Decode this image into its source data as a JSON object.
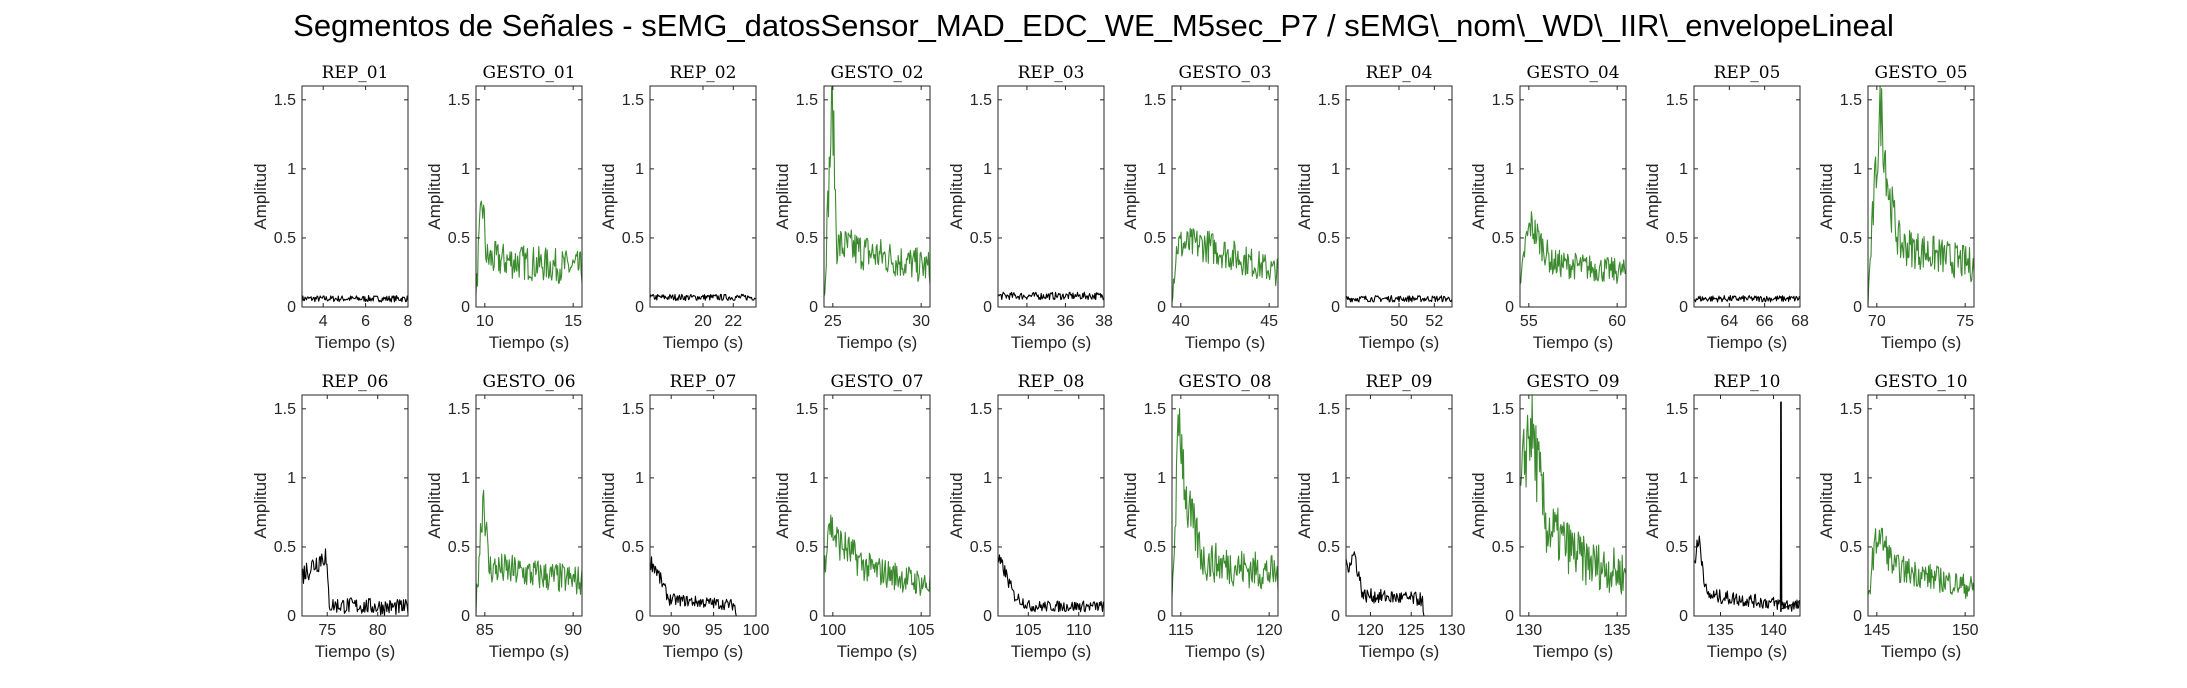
{
  "title": "Segmentos de Señales - sEMG_datosSensor_MAD_EDC_WE_M5sec_P7 / sEMG\\_nom\\_WD\\_IIR\\_envelopeLineal",
  "colors": {
    "rep": "#000000",
    "gesto": "#3b8a2e",
    "axis": "#262626"
  },
  "chart_data": [
    {
      "type": "line",
      "title": "REP_01",
      "color": "rep",
      "xlabel": "Tiempo (s)",
      "ylabel": "Amplitud",
      "xlim": [
        3,
        8
      ],
      "ylim": [
        0,
        1.6
      ],
      "xticks": [
        4,
        6,
        8
      ],
      "yticks": [
        0,
        0.5,
        1,
        1.5
      ],
      "ytick_labels": [
        "0",
        "0.5",
        "1",
        "1.5"
      ],
      "shape": [
        [
          0,
          0.06
        ],
        [
          1,
          0.06
        ]
      ],
      "amp": 0.035
    },
    {
      "type": "line",
      "title": "GESTO_01",
      "color": "gesto",
      "xlabel": "Tiempo (s)",
      "ylabel": "Amplitud",
      "xlim": [
        9.5,
        15.5
      ],
      "ylim": [
        0,
        1.6
      ],
      "xticks": [
        10,
        15
      ],
      "yticks": [
        0,
        0.5,
        1,
        1.5
      ],
      "ytick_labels": [
        "0",
        "0.5",
        "1",
        "1.5"
      ],
      "shape": [
        [
          0,
          0.05
        ],
        [
          0.02,
          0.35
        ],
        [
          0.06,
          0.78
        ],
        [
          0.1,
          0.35
        ],
        [
          1,
          0.28
        ]
      ],
      "amp": 0.14
    },
    {
      "type": "line",
      "title": "REP_02",
      "color": "rep",
      "xlabel": "Tiempo (s)",
      "ylabel": "Amplitud",
      "xlim": [
        16.5,
        23.5
      ],
      "ylim": [
        0,
        1.6
      ],
      "xticks": [
        20,
        22
      ],
      "yticks": [
        0,
        0.5,
        1,
        1.5
      ],
      "ytick_labels": [
        "0",
        "0.5",
        "1",
        "1.5"
      ],
      "shape": [
        [
          0,
          0.07
        ],
        [
          1,
          0.07
        ]
      ],
      "amp": 0.035
    },
    {
      "type": "line",
      "title": "GESTO_02",
      "color": "gesto",
      "xlabel": "Tiempo (s)",
      "ylabel": "Amplitud",
      "xlim": [
        24.5,
        30.5
      ],
      "ylim": [
        0,
        1.6
      ],
      "xticks": [
        25,
        30
      ],
      "yticks": [
        0,
        0.5,
        1,
        1.5
      ],
      "ytick_labels": [
        "0",
        "0.5",
        "1",
        "1.5"
      ],
      "shape": [
        [
          0,
          0.05
        ],
        [
          0.03,
          0.6
        ],
        [
          0.08,
          1.52
        ],
        [
          0.12,
          0.45
        ],
        [
          1,
          0.28
        ]
      ],
      "amp": 0.14
    },
    {
      "type": "line",
      "title": "REP_03",
      "color": "rep",
      "xlabel": "Tiempo (s)",
      "ylabel": "Amplitud",
      "xlim": [
        32.5,
        38
      ],
      "ylim": [
        0,
        1.6
      ],
      "xticks": [
        34,
        36,
        38
      ],
      "yticks": [
        0,
        0.5,
        1,
        1.5
      ],
      "ytick_labels": [
        "0",
        "0.5",
        "1",
        "1.5"
      ],
      "shape": [
        [
          0,
          0.08
        ],
        [
          1,
          0.08
        ]
      ],
      "amp": 0.04
    },
    {
      "type": "line",
      "title": "GESTO_03",
      "color": "gesto",
      "xlabel": "Tiempo (s)",
      "ylabel": "Amplitud",
      "xlim": [
        39.5,
        45.5
      ],
      "ylim": [
        0,
        1.6
      ],
      "xticks": [
        40,
        45
      ],
      "yticks": [
        0,
        0.5,
        1,
        1.5
      ],
      "ytick_labels": [
        "0",
        "0.5",
        "1",
        "1.5"
      ],
      "shape": [
        [
          0,
          0.1
        ],
        [
          0.05,
          0.45
        ],
        [
          0.3,
          0.45
        ],
        [
          1,
          0.25
        ]
      ],
      "amp": 0.12
    },
    {
      "type": "line",
      "title": "REP_04",
      "color": "rep",
      "xlabel": "Tiempo (s)",
      "ylabel": "Amplitud",
      "xlim": [
        47,
        53
      ],
      "ylim": [
        0,
        1.6
      ],
      "xticks": [
        50,
        52
      ],
      "yticks": [
        0,
        0.5,
        1,
        1.5
      ],
      "ytick_labels": [
        "0",
        "0.5",
        "1",
        "1.5"
      ],
      "shape": [
        [
          0,
          0.06
        ],
        [
          1,
          0.06
        ]
      ],
      "amp": 0.035
    },
    {
      "type": "line",
      "title": "GESTO_04",
      "color": "gesto",
      "xlabel": "Tiempo (s)",
      "ylabel": "Amplitud",
      "xlim": [
        54.5,
        60.5
      ],
      "ylim": [
        0,
        1.6
      ],
      "xticks": [
        55,
        60
      ],
      "yticks": [
        0,
        0.5,
        1,
        1.5
      ],
      "ytick_labels": [
        "0",
        "0.5",
        "1",
        "1.5"
      ],
      "shape": [
        [
          0,
          0.1
        ],
        [
          0.05,
          0.45
        ],
        [
          0.1,
          0.6
        ],
        [
          0.3,
          0.32
        ],
        [
          1,
          0.25
        ]
      ],
      "amp": 0.11
    },
    {
      "type": "line",
      "title": "REP_05",
      "color": "rep",
      "xlabel": "Tiempo (s)",
      "ylabel": "Amplitud",
      "xlim": [
        62,
        68
      ],
      "ylim": [
        0,
        1.6
      ],
      "xticks": [
        64,
        66,
        68
      ],
      "yticks": [
        0,
        0.5,
        1,
        1.5
      ],
      "ytick_labels": [
        "0",
        "0.5",
        "1",
        "1.5"
      ],
      "shape": [
        [
          0,
          0.06
        ],
        [
          1,
          0.06
        ]
      ],
      "amp": 0.035
    },
    {
      "type": "line",
      "title": "GESTO_05",
      "color": "gesto",
      "xlabel": "Tiempo (s)",
      "ylabel": "Amplitud",
      "xlim": [
        69.5,
        75.5
      ],
      "ylim": [
        0,
        1.6
      ],
      "xticks": [
        70,
        75
      ],
      "yticks": [
        0,
        0.5,
        1,
        1.5
      ],
      "ytick_labels": [
        "0",
        "0.5",
        "1",
        "1.5"
      ],
      "shape": [
        [
          0,
          0.05
        ],
        [
          0.05,
          0.7
        ],
        [
          0.12,
          1.45
        ],
        [
          0.2,
          0.8
        ],
        [
          0.3,
          0.45
        ],
        [
          1,
          0.3
        ]
      ],
      "amp": 0.14
    },
    {
      "type": "line",
      "title": "REP_06",
      "color": "rep",
      "xlabel": "Tiempo (s)",
      "ylabel": "Amplitud",
      "xlim": [
        72.5,
        83
      ],
      "ylim": [
        0,
        1.6
      ],
      "xticks": [
        75,
        80
      ],
      "yticks": [
        0,
        0.5,
        1,
        1.5
      ],
      "ytick_labels": [
        "0",
        "0.5",
        "1",
        "1.5"
      ],
      "shape": [
        [
          0,
          0.3
        ],
        [
          0.15,
          0.4
        ],
        [
          0.22,
          0.45
        ],
        [
          0.26,
          0.08
        ],
        [
          1,
          0.06
        ]
      ],
      "amp": 0.09
    },
    {
      "type": "line",
      "title": "GESTO_06",
      "color": "gesto",
      "xlabel": "Tiempo (s)",
      "ylabel": "Amplitud",
      "xlim": [
        84.5,
        90.5
      ],
      "ylim": [
        0,
        1.6
      ],
      "xticks": [
        85,
        90
      ],
      "yticks": [
        0,
        0.5,
        1,
        1.5
      ],
      "ytick_labels": [
        "0",
        "0.5",
        "1",
        "1.5"
      ],
      "shape": [
        [
          0,
          0.05
        ],
        [
          0.03,
          0.45
        ],
        [
          0.07,
          0.92
        ],
        [
          0.12,
          0.35
        ],
        [
          1,
          0.25
        ]
      ],
      "amp": 0.13
    },
    {
      "type": "line",
      "title": "REP_07",
      "color": "rep",
      "xlabel": "Tiempo (s)",
      "ylabel": "Amplitud",
      "xlim": [
        87.5,
        100
      ],
      "ylim": [
        0,
        1.6
      ],
      "xticks": [
        90,
        95,
        100
      ],
      "yticks": [
        0,
        0.5,
        1,
        1.5
      ],
      "ytick_labels": [
        "0",
        "0.5",
        "1",
        "1.5"
      ],
      "shape": [
        [
          0,
          0.4
        ],
        [
          0.05,
          0.35
        ],
        [
          0.18,
          0.12
        ],
        [
          0.8,
          0.08
        ],
        [
          0.81,
          0
        ],
        [
          1,
          0
        ]
      ],
      "amp": 0.06
    },
    {
      "type": "line",
      "title": "GESTO_07",
      "color": "gesto",
      "xlabel": "Tiempo (s)",
      "ylabel": "Amplitud",
      "xlim": [
        99.5,
        105.5
      ],
      "ylim": [
        0,
        1.6
      ],
      "xticks": [
        100,
        105
      ],
      "yticks": [
        0,
        0.5,
        1,
        1.5
      ],
      "ytick_labels": [
        "0",
        "0.5",
        "1",
        "1.5"
      ],
      "shape": [
        [
          0,
          0.3
        ],
        [
          0.04,
          0.7
        ],
        [
          0.12,
          0.55
        ],
        [
          0.4,
          0.35
        ],
        [
          1,
          0.22
        ]
      ],
      "amp": 0.12
    },
    {
      "type": "line",
      "title": "REP_08",
      "color": "rep",
      "xlabel": "Tiempo (s)",
      "ylabel": "Amplitud",
      "xlim": [
        102,
        112.5
      ],
      "ylim": [
        0,
        1.6
      ],
      "xticks": [
        105,
        110
      ],
      "yticks": [
        0,
        0.5,
        1,
        1.5
      ],
      "ytick_labels": [
        "0",
        "0.5",
        "1",
        "1.5"
      ],
      "shape": [
        [
          0,
          0.4
        ],
        [
          0.05,
          0.35
        ],
        [
          0.15,
          0.15
        ],
        [
          0.3,
          0.07
        ],
        [
          1,
          0.07
        ]
      ],
      "amp": 0.06
    },
    {
      "type": "line",
      "title": "GESTO_08",
      "color": "gesto",
      "xlabel": "Tiempo (s)",
      "ylabel": "Amplitud",
      "xlim": [
        114.5,
        120.5
      ],
      "ylim": [
        0,
        1.6
      ],
      "xticks": [
        115,
        120
      ],
      "yticks": [
        0,
        0.5,
        1,
        1.5
      ],
      "ytick_labels": [
        "0",
        "0.5",
        "1",
        "1.5"
      ],
      "shape": [
        [
          0,
          0.1
        ],
        [
          0.04,
          0.9
        ],
        [
          0.07,
          1.45
        ],
        [
          0.14,
          0.8
        ],
        [
          0.3,
          0.4
        ],
        [
          1,
          0.3
        ]
      ],
      "amp": 0.15
    },
    {
      "type": "line",
      "title": "REP_09",
      "color": "rep",
      "xlabel": "Tiempo (s)",
      "ylabel": "Amplitud",
      "xlim": [
        117,
        130
      ],
      "ylim": [
        0,
        1.6
      ],
      "xticks": [
        120,
        125,
        130
      ],
      "yticks": [
        0,
        0.5,
        1,
        1.5
      ],
      "ytick_labels": [
        "0",
        "0.5",
        "1",
        "1.5"
      ],
      "shape": [
        [
          0,
          0.35
        ],
        [
          0.08,
          0.45
        ],
        [
          0.16,
          0.15
        ],
        [
          0.72,
          0.12
        ],
        [
          0.73,
          0
        ],
        [
          1,
          0
        ]
      ],
      "amp": 0.07
    },
    {
      "type": "line",
      "title": "GESTO_09",
      "color": "gesto",
      "xlabel": "Tiempo (s)",
      "ylabel": "Amplitud",
      "xlim": [
        129.5,
        135.5
      ],
      "ylim": [
        0,
        1.6
      ],
      "xticks": [
        130,
        135
      ],
      "yticks": [
        0,
        0.5,
        1,
        1.5
      ],
      "ytick_labels": [
        "0",
        "0.5",
        "1",
        "1.5"
      ],
      "shape": [
        [
          0,
          0.8
        ],
        [
          0.05,
          1.2
        ],
        [
          0.1,
          1.4
        ],
        [
          0.25,
          0.65
        ],
        [
          0.6,
          0.4
        ],
        [
          1,
          0.3
        ]
      ],
      "amp": 0.18
    },
    {
      "type": "line",
      "title": "REP_10",
      "color": "rep",
      "xlabel": "Tiempo (s)",
      "ylabel": "Amplitud",
      "xlim": [
        132.5,
        142.5
      ],
      "ylim": [
        0,
        1.6
      ],
      "xticks": [
        135,
        140
      ],
      "yticks": [
        0,
        0.5,
        1,
        1.5
      ],
      "ytick_labels": [
        "0",
        "0.5",
        "1",
        "1.5"
      ],
      "shape": [
        [
          0,
          0.4
        ],
        [
          0.05,
          0.55
        ],
        [
          0.12,
          0.15
        ],
        [
          1,
          0.07
        ]
      ],
      "amp": 0.07,
      "spike": [
        0.82,
        1.55
      ]
    },
    {
      "type": "line",
      "title": "GESTO_10",
      "color": "gesto",
      "xlabel": "Tiempo (s)",
      "ylabel": "Amplitud",
      "xlim": [
        144.5,
        150.5
      ],
      "ylim": [
        0,
        1.6
      ],
      "xticks": [
        145,
        150
      ],
      "yticks": [
        0,
        0.5,
        1,
        1.5
      ],
      "ytick_labels": [
        "0",
        "0.5",
        "1",
        "1.5"
      ],
      "shape": [
        [
          0,
          0.1
        ],
        [
          0.05,
          0.45
        ],
        [
          0.1,
          0.6
        ],
        [
          0.25,
          0.35
        ],
        [
          1,
          0.2
        ]
      ],
      "amp": 0.11
    }
  ]
}
